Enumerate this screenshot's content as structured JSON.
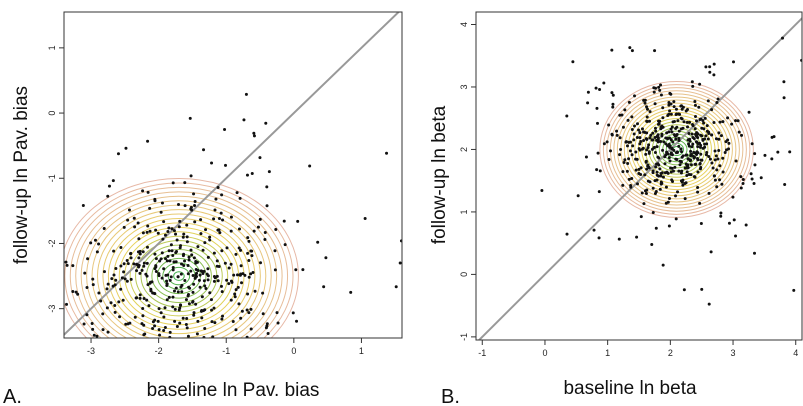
{
  "chart_data": [
    {
      "type": "scatter",
      "panel_label": "A.",
      "xlabel": "baseline ln Pav. bias",
      "ylabel": "follow-up ln Pav. bias",
      "xlim": [
        -3.4,
        1.6
      ],
      "ylim": [
        -3.45,
        1.55
      ],
      "xticks": [
        -3,
        -2,
        -1,
        0,
        1
      ],
      "yticks": [
        -3,
        -2,
        -1,
        0,
        1
      ],
      "xtick_labels": [
        "-3",
        "-2",
        "-1",
        "0",
        "1"
      ],
      "ytick_labels": [
        "-3",
        "-2",
        "-1",
        "0",
        "1"
      ],
      "identity_line": true,
      "density_contours": true,
      "density_center": [
        -1.7,
        -2.5
      ],
      "density_spread": [
        0.65,
        0.55
      ],
      "n_points": 520,
      "seed": 17,
      "grid": false
    },
    {
      "type": "scatter",
      "panel_label": "B.",
      "xlabel": "baseline ln beta",
      "ylabel": "follow-up ln beta",
      "xlim": [
        -1.1,
        4.1
      ],
      "ylim": [
        -1.05,
        4.2
      ],
      "xticks": [
        -1,
        0,
        1,
        2,
        3,
        4
      ],
      "yticks": [
        -1,
        0,
        1,
        2,
        3,
        4
      ],
      "xtick_labels": [
        "-1",
        "0",
        "1",
        "2",
        "3",
        "4"
      ],
      "ytick_labels": [
        "-1",
        "0",
        "1",
        "2",
        "3",
        "4"
      ],
      "identity_line": true,
      "density_contours": true,
      "density_center": [
        2.1,
        2.0
      ],
      "density_spread": [
        0.45,
        0.4
      ],
      "n_points": 520,
      "seed": 29,
      "grid": false
    }
  ],
  "colors": {
    "background": "#ffffff",
    "axes": "#333333",
    "points": "#111111",
    "identity_line": "#999999",
    "contour_low": "#e7b8a6",
    "contour_mid": "#e8d45a",
    "contour_high": "#3fae4a"
  }
}
